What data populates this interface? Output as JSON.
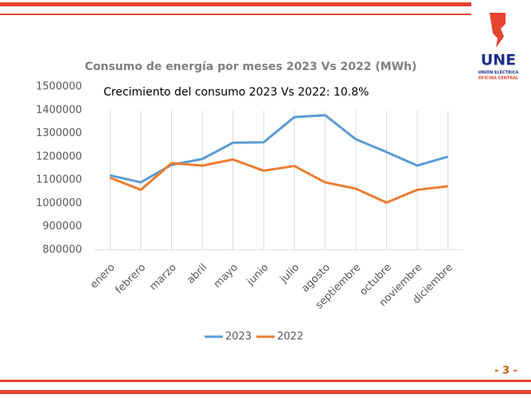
{
  "chart_data": {
    "type": "line",
    "title": "Consumo de energía por meses 2023 Vs 2022 (MWh)",
    "annotation": "Crecimiento del consumo 2023 Vs 2022: 10.8%",
    "categories": [
      "enero",
      "febrero",
      "marzo",
      "abril",
      "mayo",
      "junio",
      "julio",
      "agosto",
      "septiembre",
      "octubre",
      "noviembre",
      "diciembre"
    ],
    "series": [
      {
        "name": "2023",
        "color": "#5b9bd5",
        "values": [
          1120000,
          1090000,
          1165000,
          1190000,
          1260000,
          1262000,
          1370000,
          1378000,
          1275000,
          1220000,
          1162000,
          1200000
        ]
      },
      {
        "name": "2022",
        "color": "#ed7d31",
        "values": [
          1110000,
          1058000,
          1172000,
          1162000,
          1188000,
          1140000,
          1160000,
          1090000,
          1063000,
          1003000,
          1058000,
          1073000
        ]
      }
    ],
    "ylim": [
      800000,
      1500000
    ],
    "yticks": [
      800000,
      900000,
      1000000,
      1100000,
      1200000,
      1300000,
      1400000,
      1500000
    ],
    "grid": "x",
    "legend": "bottom"
  },
  "logo": {
    "name": "UNE",
    "line1": "UNIÓN ELÉCTRICA",
    "line2": "OFICINA CENTRAL"
  },
  "page_number": "- 3 -"
}
